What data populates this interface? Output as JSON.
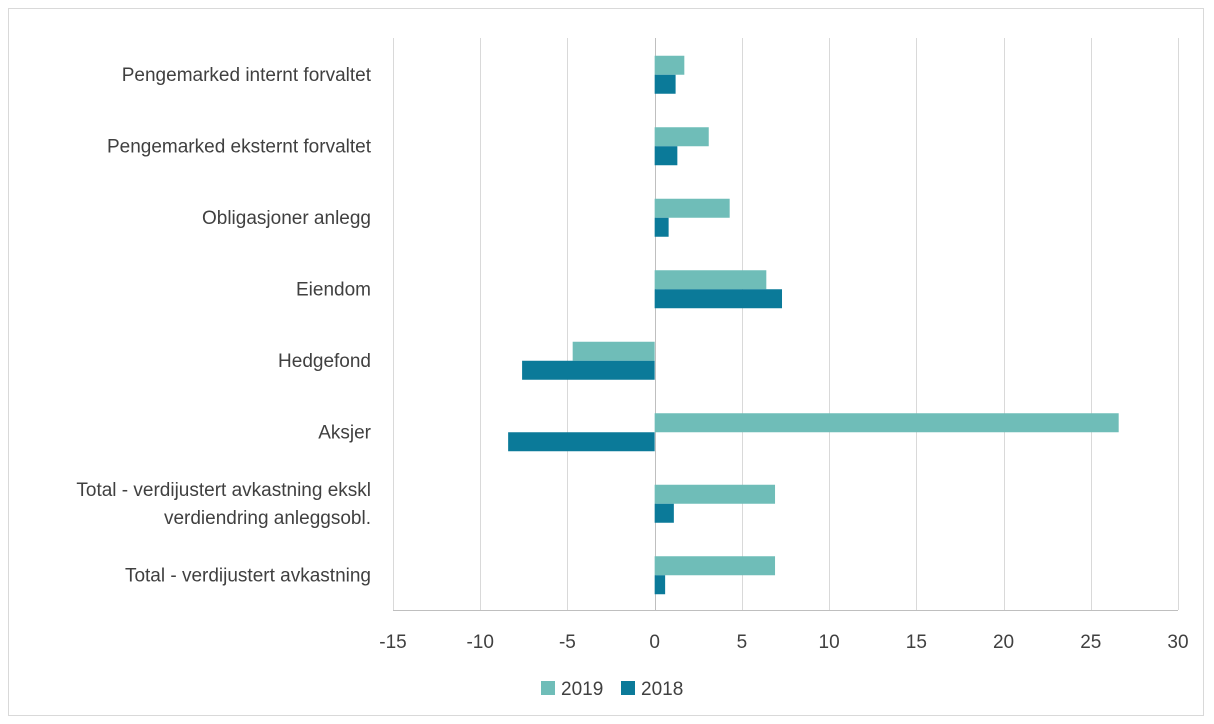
{
  "chart_data": {
    "type": "bar",
    "orientation": "horizontal",
    "title": "",
    "xlabel": "",
    "ylabel": "",
    "categories": [
      "Pengemarked internt forvaltet",
      "Pengemarked eksternt forvaltet",
      "Obligasjoner anlegg",
      "Eiendom",
      "Hedgefond",
      "Aksjer",
      "Total - verdijustert avkastning ekskl verdiendring anleggsobl.",
      "Total - verdijustert avkastning"
    ],
    "category_lines": [
      [
        "Pengemarked internt forvaltet"
      ],
      [
        "Pengemarked eksternt forvaltet"
      ],
      [
        "Obligasjoner anlegg"
      ],
      [
        "Eiendom"
      ],
      [
        "Hedgefond"
      ],
      [
        "Aksjer"
      ],
      [
        "Total - verdijustert avkastning ekskl",
        "verdiendring anleggsobl."
      ],
      [
        "Total - verdijustert avkastning"
      ]
    ],
    "series": [
      {
        "name": "2019",
        "color": "#6fbdb8",
        "values": [
          1.7,
          3.1,
          4.3,
          6.4,
          -4.7,
          26.6,
          6.9,
          6.9
        ]
      },
      {
        "name": "2018",
        "color": "#0b7a99",
        "values": [
          1.2,
          1.3,
          0.8,
          7.3,
          -7.6,
          -8.4,
          1.1,
          0.6
        ]
      }
    ],
    "xlim": [
      -15,
      30
    ],
    "xticks": [
      "-15",
      "-10",
      "-5",
      "0",
      "5",
      "10",
      "15",
      "20",
      "25",
      "30"
    ],
    "xtick_values": [
      -15,
      -10,
      -5,
      0,
      5,
      10,
      15,
      20,
      25,
      30
    ],
    "grid": "vertical",
    "legend_position": "bottom",
    "colors": {
      "grid": "#d9d9d9",
      "axis": "#bfbfbf",
      "text": "#404040"
    }
  }
}
